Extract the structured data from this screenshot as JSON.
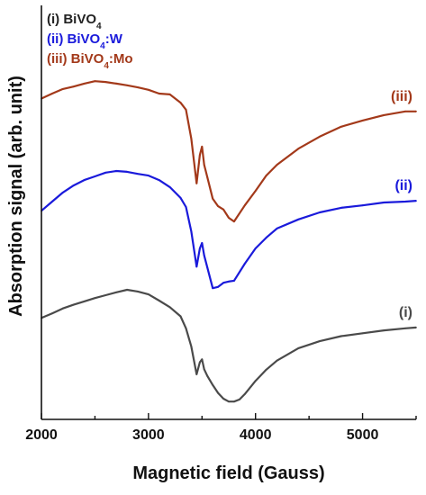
{
  "chart_data": {
    "type": "line",
    "xlabel": "Magnetic field (Gauss)",
    "ylabel": "Absorption signal (arb. unit)",
    "xlim": [
      2000,
      5500
    ],
    "xticks": [
      2000,
      3000,
      4000,
      5000
    ],
    "ylim": [
      0,
      100
    ],
    "yticks": [],
    "grid": false,
    "legend": {
      "placement": "top-left",
      "entries": [
        {
          "prefix": "(i) BiVO",
          "sub": "4",
          "suffix": "",
          "color": "#222222"
        },
        {
          "prefix": "(ii) BiVO",
          "sub": "4",
          "suffix": ":W",
          "color": "#1a1adb"
        },
        {
          "prefix": "(iii) BiVO",
          "sub": "4",
          "suffix": ":Mo",
          "color": "#a3391a"
        }
      ]
    },
    "series": [
      {
        "name": "(i)",
        "color": "#4a4a4a",
        "end_label": "(i)",
        "x": [
          2000,
          2100,
          2200,
          2300,
          2400,
          2500,
          2600,
          2700,
          2800,
          2900,
          3000,
          3100,
          3200,
          3300,
          3350,
          3400,
          3450,
          3480,
          3500,
          3520,
          3550,
          3600,
          3650,
          3700,
          3750,
          3800,
          3850,
          3900,
          4000,
          4100,
          4200,
          4400,
          4600,
          4800,
          5000,
          5200,
          5400,
          5500
        ],
        "y": [
          24.5,
          25.6,
          26.8,
          27.7,
          28.5,
          29.3,
          30.0,
          30.7,
          31.3,
          30.9,
          30.2,
          28.7,
          27.1,
          24.9,
          22.0,
          17.6,
          10.9,
          13.8,
          14.5,
          12.1,
          10.5,
          8.3,
          6.4,
          5.0,
          4.3,
          4.3,
          4.8,
          6.1,
          9.3,
          12.0,
          14.2,
          17.2,
          18.9,
          20.1,
          20.8,
          21.5,
          22.0,
          22.2
        ]
      },
      {
        "name": "(ii)",
        "color": "#1a1adb",
        "end_label": "(ii)",
        "x": [
          2000,
          2100,
          2200,
          2300,
          2400,
          2500,
          2600,
          2700,
          2800,
          2900,
          3000,
          3100,
          3200,
          3300,
          3350,
          3400,
          3450,
          3480,
          3500,
          3520,
          3550,
          3600,
          3650,
          3700,
          3750,
          3800,
          3900,
          4000,
          4100,
          4200,
          4400,
          4600,
          4800,
          5000,
          5200,
          5400,
          5500
        ],
        "y": [
          50.4,
          52.6,
          54.8,
          56.5,
          57.8,
          58.7,
          59.6,
          60.0,
          59.8,
          59.3,
          58.9,
          57.8,
          56.1,
          53.5,
          51.3,
          45.4,
          36.9,
          41.3,
          42.6,
          39.6,
          36.7,
          31.7,
          32.0,
          33.0,
          33.3,
          33.5,
          37.6,
          41.3,
          43.9,
          46.1,
          48.3,
          50.0,
          51.1,
          51.7,
          52.4,
          52.6,
          52.8
        ]
      },
      {
        "name": "(iii)",
        "color": "#a3391a",
        "end_label": "(iii)",
        "x": [
          2000,
          2100,
          2200,
          2300,
          2400,
          2500,
          2600,
          2700,
          2800,
          2900,
          3000,
          3100,
          3200,
          3300,
          3350,
          3400,
          3450,
          3480,
          3500,
          3520,
          3550,
          3600,
          3650,
          3700,
          3750,
          3800,
          3900,
          4000,
          4100,
          4200,
          4400,
          4600,
          4800,
          5000,
          5200,
          5400,
          5500
        ],
        "y": [
          77.5,
          78.7,
          79.8,
          80.4,
          81.1,
          81.7,
          81.5,
          81.1,
          80.7,
          80.2,
          79.6,
          78.7,
          78.5,
          76.5,
          74.8,
          67.8,
          57.0,
          63.9,
          65.9,
          61.5,
          58.5,
          53.3,
          51.5,
          50.7,
          48.7,
          47.8,
          51.7,
          55.2,
          58.9,
          61.5,
          65.4,
          68.3,
          70.7,
          72.2,
          73.5,
          74.4,
          74.4
        ]
      }
    ]
  }
}
